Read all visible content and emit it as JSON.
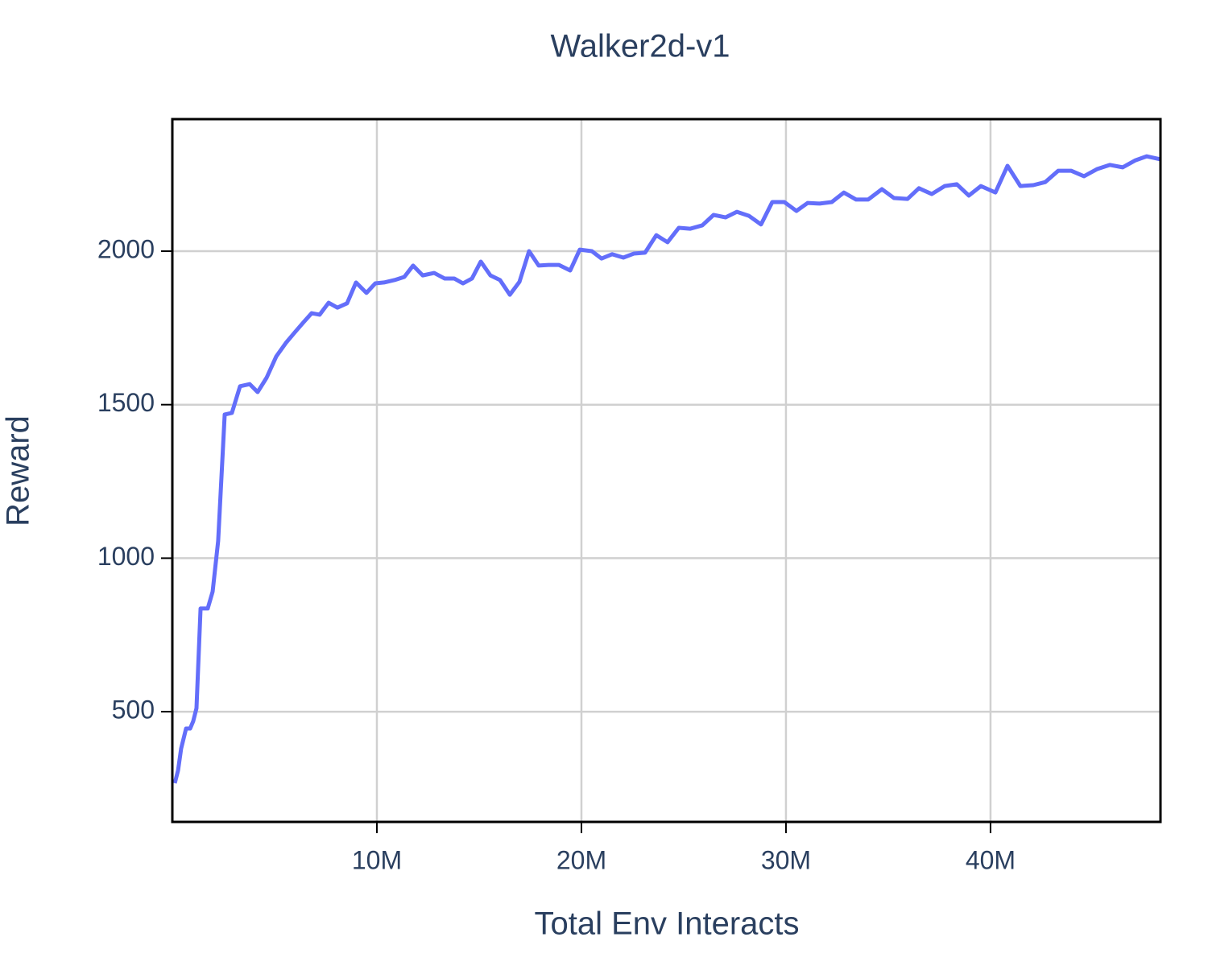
{
  "chart_data": {
    "type": "line",
    "title": "Walker2d-v1",
    "x_label": "Total Env Interacts",
    "y_label": "Reward",
    "color": "#636efa",
    "grid": true,
    "x": [
      120000,
      280000,
      430000,
      670000,
      870000,
      1020000,
      1180000,
      1380000,
      1730000,
      1970000,
      2240000,
      2560000,
      2910000,
      3310000,
      3780000,
      4170000,
      4610000,
      5080000,
      5550000,
      5980000,
      6420000,
      6810000,
      7200000,
      7640000,
      8070000,
      8540000,
      8980000,
      9490000,
      9920000,
      10350000,
      10870000,
      11340000,
      11770000,
      12240000,
      12800000,
      13310000,
      13780000,
      14210000,
      14650000,
      15080000,
      15550000,
      16020000,
      16500000,
      16970000,
      17440000,
      17910000,
      18390000,
      18900000,
      19450000,
      19920000,
      20510000,
      20980000,
      21500000,
      22050000,
      22560000,
      23110000,
      23660000,
      24210000,
      24760000,
      25310000,
      25910000,
      26460000,
      27050000,
      27600000,
      28190000,
      28780000,
      29330000,
      29920000,
      30510000,
      31060000,
      31650000,
      32240000,
      32830000,
      33430000,
      34020000,
      34690000,
      35280000,
      35940000,
      36500000,
      37130000,
      37760000,
      38350000,
      38940000,
      39530000,
      40240000,
      40830000,
      41460000,
      42090000,
      42680000,
      43310000,
      43940000,
      44570000,
      45200000,
      45830000,
      46460000,
      47090000,
      47640000,
      48310000
    ],
    "values": [
      267,
      309,
      380,
      445,
      445,
      469,
      511,
      836,
      836,
      891,
      1056,
      1468,
      1473,
      1560,
      1567,
      1541,
      1588,
      1657,
      1701,
      1735,
      1769,
      1798,
      1793,
      1832,
      1816,
      1830,
      1898,
      1864,
      1895,
      1898,
      1906,
      1916,
      1953,
      1921,
      1929,
      1911,
      1911,
      1895,
      1911,
      1966,
      1921,
      1906,
      1858,
      1900,
      2000,
      1953,
      1955,
      1955,
      1937,
      2005,
      2000,
      1976,
      1990,
      1979,
      1992,
      1995,
      2052,
      2029,
      2076,
      2073,
      2084,
      2118,
      2110,
      2128,
      2115,
      2087,
      2160,
      2160,
      2131,
      2157,
      2155,
      2160,
      2191,
      2168,
      2168,
      2202,
      2173,
      2170,
      2205,
      2186,
      2212,
      2218,
      2181,
      2212,
      2191,
      2278,
      2212,
      2215,
      2225,
      2262,
      2262,
      2244,
      2267,
      2281,
      2273,
      2296,
      2309,
      2299
    ],
    "xlim": [
      0,
      48310000
    ],
    "ylim": [
      141,
      2430
    ],
    "xticks": [
      {
        "value": 10000000,
        "label": "10M"
      },
      {
        "value": 20000000,
        "label": "20M"
      },
      {
        "value": 30000000,
        "label": "30M"
      },
      {
        "value": 40000000,
        "label": "40M"
      }
    ],
    "yticks": [
      500,
      1000,
      1500,
      2000
    ]
  }
}
